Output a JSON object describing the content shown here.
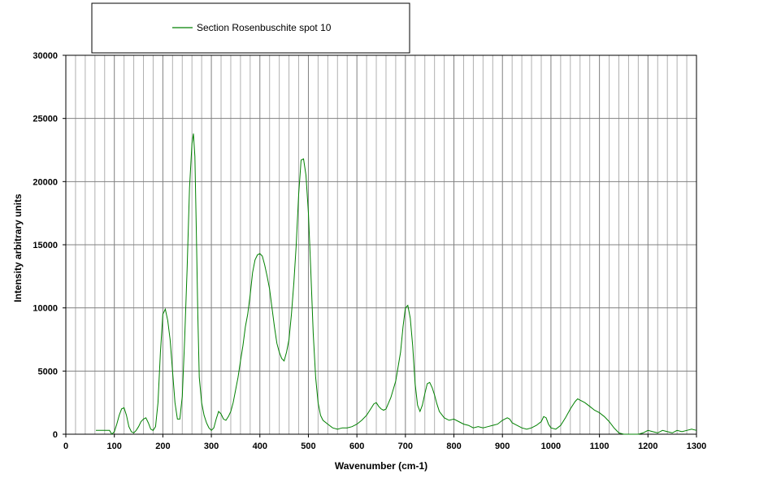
{
  "chart_data": {
    "type": "line",
    "xlabel": "Wavenumber (cm-1)",
    "ylabel": "Intensity  arbitrary units",
    "xlim": [
      0,
      1300
    ],
    "ylim": [
      0,
      30000
    ],
    "x_major_ticks": [
      0,
      100,
      200,
      300,
      400,
      500,
      600,
      700,
      800,
      900,
      1000,
      1100,
      1200,
      1300
    ],
    "x_minor_step": 20,
    "y_ticks": [
      0,
      5000,
      10000,
      15000,
      20000,
      25000,
      30000
    ],
    "grid": true,
    "legend_position": "top",
    "series": [
      {
        "name": "Section Rosenbuschite spot 10",
        "color": "#008000",
        "x": [
          62,
          70,
          80,
          90,
          95,
          100,
          105,
          110,
          115,
          120,
          125,
          130,
          135,
          140,
          145,
          150,
          155,
          160,
          165,
          170,
          175,
          180,
          185,
          190,
          195,
          200,
          205,
          210,
          215,
          220,
          225,
          230,
          235,
          240,
          245,
          250,
          255,
          260,
          263,
          266,
          269,
          272,
          275,
          280,
          285,
          290,
          295,
          300,
          305,
          310,
          315,
          320,
          325,
          330,
          335,
          340,
          345,
          350,
          355,
          360,
          365,
          370,
          375,
          380,
          385,
          390,
          395,
          400,
          405,
          410,
          415,
          420,
          425,
          430,
          435,
          440,
          445,
          450,
          455,
          460,
          465,
          470,
          475,
          480,
          485,
          490,
          495,
          500,
          505,
          510,
          515,
          520,
          525,
          530,
          540,
          550,
          560,
          570,
          580,
          590,
          600,
          610,
          620,
          630,
          635,
          640,
          645,
          650,
          655,
          660,
          670,
          680,
          690,
          695,
          700,
          705,
          710,
          715,
          720,
          725,
          730,
          735,
          740,
          745,
          750,
          755,
          760,
          765,
          770,
          780,
          790,
          800,
          810,
          820,
          830,
          840,
          850,
          860,
          870,
          880,
          890,
          900,
          910,
          915,
          920,
          930,
          940,
          950,
          960,
          970,
          980,
          985,
          990,
          995,
          1000,
          1010,
          1020,
          1030,
          1040,
          1050,
          1055,
          1060,
          1070,
          1080,
          1090,
          1100,
          1110,
          1120,
          1130,
          1140,
          1150,
          1160,
          1170,
          1180,
          1190,
          1200,
          1210,
          1220,
          1230,
          1240,
          1250,
          1260,
          1270,
          1280,
          1290,
          1300
        ],
        "y": [
          300,
          300,
          300,
          300,
          0,
          200,
          800,
          1500,
          2000,
          2100,
          1500,
          600,
          200,
          100,
          300,
          600,
          1000,
          1200,
          1300,
          900,
          400,
          300,
          600,
          2500,
          6500,
          9500,
          9900,
          9000,
          7500,
          5000,
          2500,
          1200,
          1200,
          3000,
          7500,
          13000,
          19500,
          23000,
          23800,
          22000,
          16000,
          9500,
          4500,
          2500,
          1500,
          900,
          500,
          300,
          500,
          1200,
          1800,
          1600,
          1200,
          1100,
          1400,
          1800,
          2500,
          3500,
          4500,
          5800,
          7000,
          8500,
          9500,
          11000,
          12800,
          13800,
          14200,
          14300,
          14100,
          13400,
          12500,
          11500,
          10000,
          8500,
          7200,
          6500,
          6000,
          5800,
          6500,
          7500,
          9500,
          12000,
          15000,
          19000,
          21700,
          21800,
          20500,
          17500,
          13000,
          8000,
          4500,
          2500,
          1500,
          1100,
          800,
          500,
          400,
          500,
          500,
          600,
          800,
          1100,
          1500,
          2100,
          2400,
          2500,
          2200,
          2000,
          1900,
          2000,
          2900,
          4200,
          6500,
          8500,
          10000,
          10200,
          9200,
          7000,
          4000,
          2300,
          1800,
          2300,
          3200,
          4000,
          4100,
          3700,
          3100,
          2400,
          1800,
          1300,
          1100,
          1200,
          1000,
          800,
          700,
          500,
          600,
          500,
          600,
          700,
          800,
          1100,
          1300,
          1200,
          900,
          700,
          500,
          400,
          500,
          700,
          1000,
          1400,
          1300,
          800,
          500,
          400,
          700,
          1300,
          2000,
          2600,
          2800,
          2700,
          2500,
          2200,
          1900,
          1700,
          1400,
          1000,
          500,
          100,
          0,
          0,
          0,
          0,
          100,
          300,
          200,
          100,
          300,
          200,
          100,
          300,
          200,
          300,
          400,
          300
        ]
      }
    ]
  }
}
